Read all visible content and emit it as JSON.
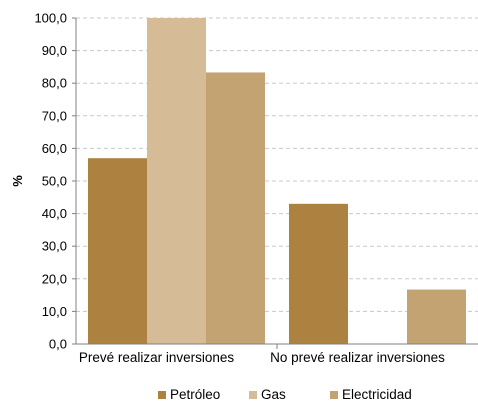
{
  "chart_data": {
    "type": "bar",
    "title": "",
    "xlabel": "",
    "ylabel": "%",
    "ylim": [
      0,
      100
    ],
    "ytick_step": 10,
    "ytick_labels": [
      "0,0",
      "10,0",
      "20,0",
      "30,0",
      "40,0",
      "50,0",
      "60,0",
      "70,0",
      "80,0",
      "90,0",
      "100,0"
    ],
    "grid": true,
    "legend_position": "bottom",
    "categories": [
      "Prevé realizar inversiones",
      "No prevé realizar inversiones"
    ],
    "series": [
      {
        "name": "Petróleo",
        "color": "#ad8241",
        "values": [
          57,
          43
        ]
      },
      {
        "name": "Gas",
        "color": "#d6bc96",
        "values": [
          100,
          0
        ]
      },
      {
        "name": "Electricidad",
        "color": "#c4a373",
        "values": [
          83.3,
          16.7
        ]
      }
    ]
  }
}
